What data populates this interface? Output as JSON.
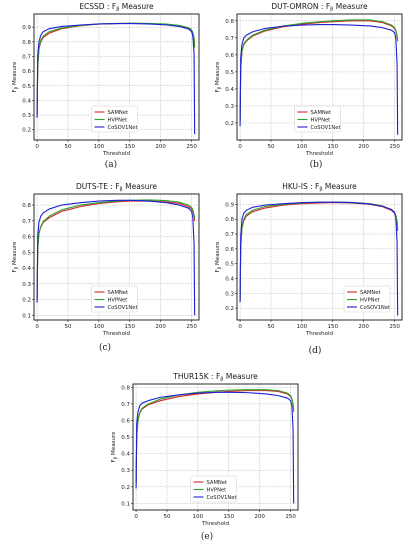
{
  "series_colors": {
    "SAMNet": "#d62728",
    "HVPNet": "#2ca02c",
    "CoSOV1Net": "#1f1fd6"
  },
  "chart_data": [
    {
      "type": "line",
      "title": "ECSSD : F_β Measure",
      "xlabel": "Threshold",
      "ylabel": "F_β Measure",
      "caption": "(a)",
      "xlim": [
        -5,
        262
      ],
      "ylim": [
        0.13,
        0.99
      ],
      "xticks": [
        0,
        50,
        100,
        150,
        200,
        250
      ],
      "yticks": [
        0.2,
        0.3,
        0.4,
        0.5,
        0.6,
        0.7,
        0.8,
        0.9
      ],
      "grid": true,
      "legend": "lower-center",
      "series": [
        {
          "name": "SAMNet",
          "x": [
            0,
            1,
            3,
            6,
            10,
            20,
            40,
            70,
            100,
            130,
            150,
            180,
            210,
            230,
            245,
            250,
            252,
            254,
            255
          ],
          "y": [
            0.31,
            0.62,
            0.75,
            0.8,
            0.83,
            0.86,
            0.89,
            0.91,
            0.921,
            0.925,
            0.926,
            0.925,
            0.92,
            0.91,
            0.895,
            0.88,
            0.86,
            0.82,
            0.78
          ]
        },
        {
          "name": "HVPNet",
          "x": [
            0,
            1,
            3,
            6,
            10,
            20,
            40,
            70,
            100,
            130,
            150,
            180,
            210,
            230,
            245,
            250,
            252,
            254,
            255
          ],
          "y": [
            0.3,
            0.63,
            0.76,
            0.81,
            0.84,
            0.87,
            0.895,
            0.912,
            0.922,
            0.926,
            0.927,
            0.926,
            0.921,
            0.912,
            0.897,
            0.882,
            0.865,
            0.825,
            0.76
          ]
        },
        {
          "name": "CoSOV1Net",
          "x": [
            0,
            1,
            3,
            6,
            10,
            20,
            40,
            70,
            100,
            130,
            150,
            180,
            210,
            230,
            245,
            250,
            252,
            254,
            255
          ],
          "y": [
            0.28,
            0.7,
            0.8,
            0.845,
            0.87,
            0.89,
            0.905,
            0.915,
            0.922,
            0.925,
            0.925,
            0.922,
            0.915,
            0.905,
            0.888,
            0.87,
            0.84,
            0.72,
            0.17
          ]
        }
      ]
    },
    {
      "type": "line",
      "title": "DUT-OMRON : F_β Measure",
      "xlabel": "Threshold",
      "ylabel": "F_β Measure",
      "caption": "(b)",
      "xlim": [
        -5,
        262
      ],
      "ylim": [
        0.1,
        0.84
      ],
      "xticks": [
        0,
        50,
        100,
        150,
        200,
        250
      ],
      "yticks": [
        0.2,
        0.3,
        0.4,
        0.5,
        0.6,
        0.7,
        0.8
      ],
      "grid": true,
      "legend": "lower-center",
      "series": [
        {
          "name": "SAMNet",
          "x": [
            0,
            1,
            3,
            6,
            10,
            20,
            40,
            70,
            100,
            130,
            150,
            180,
            210,
            230,
            245,
            250,
            252,
            254,
            255
          ],
          "y": [
            0.22,
            0.52,
            0.62,
            0.66,
            0.68,
            0.71,
            0.74,
            0.765,
            0.78,
            0.79,
            0.795,
            0.8,
            0.8,
            0.79,
            0.77,
            0.755,
            0.74,
            0.71,
            0.68
          ]
        },
        {
          "name": "HVPNet",
          "x": [
            0,
            1,
            3,
            6,
            10,
            20,
            40,
            70,
            100,
            130,
            150,
            180,
            210,
            230,
            245,
            250,
            252,
            254,
            255
          ],
          "y": [
            0.2,
            0.52,
            0.62,
            0.665,
            0.685,
            0.715,
            0.745,
            0.77,
            0.785,
            0.795,
            0.8,
            0.805,
            0.805,
            0.795,
            0.775,
            0.76,
            0.745,
            0.715,
            0.68
          ]
        },
        {
          "name": "CoSOV1Net",
          "x": [
            0,
            1,
            3,
            6,
            10,
            20,
            40,
            70,
            100,
            130,
            150,
            180,
            210,
            230,
            245,
            250,
            252,
            254,
            255
          ],
          "y": [
            0.18,
            0.58,
            0.66,
            0.7,
            0.715,
            0.735,
            0.755,
            0.768,
            0.775,
            0.778,
            0.778,
            0.775,
            0.77,
            0.76,
            0.745,
            0.73,
            0.7,
            0.55,
            0.13
          ]
        }
      ]
    },
    {
      "type": "line",
      "title": "DUTS-TE : F_β Measure",
      "xlabel": "Threshold",
      "ylabel": "F_β Measure",
      "caption": "(c)",
      "xlim": [
        -5,
        262
      ],
      "ylim": [
        0.07,
        0.87
      ],
      "xticks": [
        0,
        50,
        100,
        150,
        200,
        250
      ],
      "yticks": [
        0.1,
        0.2,
        0.3,
        0.4,
        0.5,
        0.6,
        0.7,
        0.8
      ],
      "grid": true,
      "legend": "lower-center",
      "series": [
        {
          "name": "SAMNet",
          "x": [
            0,
            1,
            3,
            6,
            10,
            20,
            40,
            70,
            100,
            130,
            150,
            180,
            210,
            230,
            245,
            250,
            252,
            254,
            255
          ],
          "y": [
            0.2,
            0.52,
            0.62,
            0.66,
            0.69,
            0.72,
            0.76,
            0.79,
            0.81,
            0.82,
            0.825,
            0.826,
            0.82,
            0.81,
            0.79,
            0.775,
            0.76,
            0.73,
            0.7
          ]
        },
        {
          "name": "HVPNet",
          "x": [
            0,
            1,
            3,
            6,
            10,
            20,
            40,
            70,
            100,
            130,
            150,
            180,
            210,
            230,
            245,
            250,
            252,
            254,
            255
          ],
          "y": [
            0.19,
            0.52,
            0.62,
            0.665,
            0.695,
            0.73,
            0.77,
            0.8,
            0.815,
            0.825,
            0.83,
            0.832,
            0.828,
            0.818,
            0.8,
            0.785,
            0.77,
            0.74,
            0.72
          ]
        },
        {
          "name": "CoSOV1Net",
          "x": [
            0,
            1,
            3,
            6,
            10,
            20,
            40,
            70,
            100,
            130,
            150,
            180,
            210,
            230,
            245,
            250,
            252,
            254,
            255
          ],
          "y": [
            0.18,
            0.6,
            0.69,
            0.73,
            0.75,
            0.775,
            0.8,
            0.815,
            0.825,
            0.83,
            0.83,
            0.825,
            0.815,
            0.8,
            0.78,
            0.76,
            0.72,
            0.55,
            0.1
          ]
        }
      ]
    },
    {
      "type": "line",
      "title": "HKU-IS : F_β Measure",
      "xlabel": "Threshold",
      "ylabel": "F_β Measure",
      "caption": "(d)",
      "xlim": [
        -5,
        262
      ],
      "ylim": [
        0.12,
        0.97
      ],
      "xticks": [
        0,
        50,
        100,
        150,
        200,
        250
      ],
      "yticks": [
        0.2,
        0.3,
        0.4,
        0.5,
        0.6,
        0.7,
        0.8,
        0.9
      ],
      "grid": true,
      "legend": "lower-right",
      "series": [
        {
          "name": "SAMNet",
          "x": [
            0,
            1,
            3,
            6,
            10,
            20,
            40,
            70,
            100,
            130,
            150,
            180,
            210,
            230,
            245,
            250,
            252,
            254,
            255
          ],
          "y": [
            0.26,
            0.6,
            0.74,
            0.79,
            0.82,
            0.85,
            0.875,
            0.895,
            0.905,
            0.91,
            0.912,
            0.91,
            0.9,
            0.885,
            0.86,
            0.84,
            0.82,
            0.78,
            0.74
          ]
        },
        {
          "name": "HVPNet",
          "x": [
            0,
            1,
            3,
            6,
            10,
            20,
            40,
            70,
            100,
            130,
            150,
            180,
            210,
            230,
            245,
            250,
            252,
            254,
            255
          ],
          "y": [
            0.25,
            0.61,
            0.75,
            0.8,
            0.83,
            0.86,
            0.885,
            0.9,
            0.91,
            0.915,
            0.916,
            0.914,
            0.905,
            0.89,
            0.865,
            0.845,
            0.825,
            0.785,
            0.72
          ]
        },
        {
          "name": "CoSOV1Net",
          "x": [
            0,
            1,
            3,
            6,
            10,
            20,
            40,
            70,
            100,
            130,
            150,
            180,
            210,
            230,
            245,
            250,
            252,
            254,
            255
          ],
          "y": [
            0.24,
            0.68,
            0.8,
            0.84,
            0.86,
            0.88,
            0.895,
            0.905,
            0.912,
            0.915,
            0.915,
            0.912,
            0.902,
            0.888,
            0.865,
            0.845,
            0.81,
            0.65,
            0.15
          ]
        }
      ]
    },
    {
      "type": "line",
      "title": "THUR15K : F_β Measure",
      "xlabel": "Threshold",
      "ylabel": "F_β Measure",
      "caption": "(e)",
      "xlim": [
        -5,
        262
      ],
      "ylim": [
        0.06,
        0.82
      ],
      "xticks": [
        0,
        50,
        100,
        150,
        200,
        250
      ],
      "yticks": [
        0.1,
        0.2,
        0.3,
        0.4,
        0.5,
        0.6,
        0.7,
        0.8
      ],
      "grid": true,
      "legend": "lower-center",
      "series": [
        {
          "name": "SAMNet",
          "x": [
            0,
            1,
            3,
            6,
            10,
            20,
            40,
            70,
            100,
            130,
            150,
            180,
            210,
            230,
            245,
            250,
            252,
            254,
            255
          ],
          "y": [
            0.22,
            0.5,
            0.6,
            0.645,
            0.67,
            0.695,
            0.72,
            0.745,
            0.76,
            0.77,
            0.775,
            0.78,
            0.78,
            0.775,
            0.76,
            0.745,
            0.73,
            0.7,
            0.66
          ]
        },
        {
          "name": "HVPNet",
          "x": [
            0,
            1,
            3,
            6,
            10,
            20,
            40,
            70,
            100,
            130,
            150,
            180,
            210,
            230,
            245,
            250,
            252,
            254,
            255
          ],
          "y": [
            0.21,
            0.5,
            0.6,
            0.65,
            0.675,
            0.7,
            0.73,
            0.755,
            0.77,
            0.778,
            0.783,
            0.786,
            0.786,
            0.78,
            0.765,
            0.75,
            0.735,
            0.7,
            0.65
          ]
        },
        {
          "name": "CoSOV1Net",
          "x": [
            0,
            1,
            3,
            6,
            10,
            20,
            40,
            70,
            100,
            130,
            150,
            180,
            210,
            230,
            245,
            250,
            252,
            254,
            255
          ],
          "y": [
            0.19,
            0.58,
            0.65,
            0.69,
            0.705,
            0.72,
            0.74,
            0.755,
            0.765,
            0.77,
            0.77,
            0.768,
            0.76,
            0.75,
            0.735,
            0.72,
            0.69,
            0.55,
            0.1
          ]
        }
      ]
    }
  ]
}
